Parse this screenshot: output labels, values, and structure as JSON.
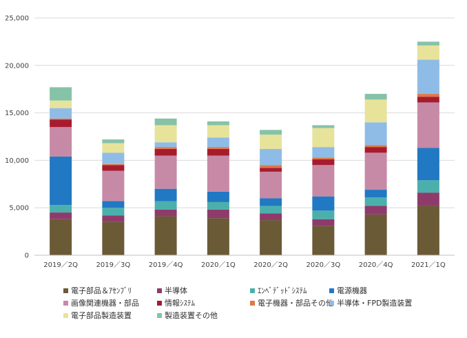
{
  "chart_data": {
    "type": "bar",
    "stacked": true,
    "categories": [
      "2019／2Q",
      "2019／3Q",
      "2019／4Q",
      "2020／1Q",
      "2020／2Q",
      "2020／3Q",
      "2020／4Q",
      "2021／1Q"
    ],
    "ylim": [
      0,
      25000
    ],
    "yticks": [
      0,
      5000,
      10000,
      15000,
      20000,
      25000
    ],
    "ytick_labels": [
      "0",
      "5,000",
      "10,000",
      "15,000",
      "20,000",
      "25,000"
    ],
    "grid": "horizontal",
    "legend_position": "bottom",
    "series": [
      {
        "name": "電子部品＆ｱｾﾝﾌﾞﾘ",
        "color": "#6b5a36",
        "values": [
          3800,
          3500,
          4100,
          3900,
          3700,
          3100,
          4300,
          5200
        ]
      },
      {
        "name": "半導体",
        "color": "#8e3b6c",
        "values": [
          700,
          700,
          700,
          900,
          700,
          700,
          900,
          1400
        ]
      },
      {
        "name": "ｴﾝﾍﾞﾃﾞｯﾄﾞｼｽﾃﾑ",
        "color": "#4bb0ac",
        "values": [
          800,
          800,
          900,
          800,
          800,
          900,
          900,
          1300
        ]
      },
      {
        "name": "電源機器",
        "color": "#2178c3",
        "values": [
          5100,
          700,
          1300,
          1100,
          800,
          1500,
          800,
          3400
        ]
      },
      {
        "name": "画像関連機器・部品",
        "color": "#c68aa6",
        "values": [
          3100,
          3200,
          3500,
          3800,
          2800,
          3300,
          3900,
          4800
        ]
      },
      {
        "name": "情報ｼｽﾃﾑ",
        "color": "#a61c2e",
        "values": [
          800,
          600,
          700,
          700,
          400,
          600,
          600,
          600
        ]
      },
      {
        "name": "電子機器・部品その他",
        "color": "#e07848",
        "values": [
          100,
          100,
          200,
          200,
          300,
          200,
          200,
          300
        ]
      },
      {
        "name": "半導体・FPD製造装置",
        "color": "#8fbce6",
        "values": [
          1100,
          1200,
          500,
          1000,
          1700,
          1100,
          2400,
          3600
        ]
      },
      {
        "name": "電子部品製造装置",
        "color": "#e7e39a",
        "values": [
          800,
          1000,
          1800,
          1300,
          1500,
          2000,
          2400,
          1500
        ]
      },
      {
        "name": "製造装置その他",
        "color": "#86c2a8",
        "values": [
          1400,
          400,
          700,
          400,
          500,
          300,
          600,
          400
        ]
      }
    ]
  }
}
